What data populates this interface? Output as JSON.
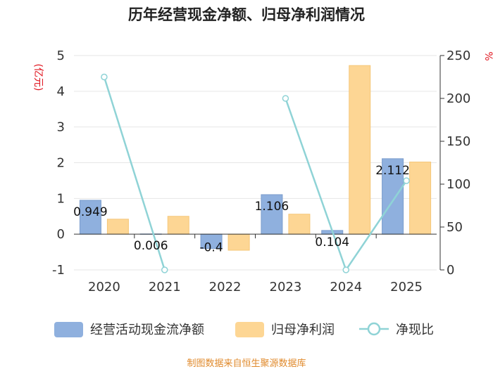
{
  "chart_data": {
    "type": "bar",
    "title": "历年经营现金净额、归母净利润情况",
    "categories": [
      "2020",
      "2021",
      "2022",
      "2023",
      "2024",
      "2025"
    ],
    "y_left_unit": "(亿元)",
    "y_right_unit": "%",
    "ylim_left": [
      -1,
      5
    ],
    "ylim_right": [
      0,
      250
    ],
    "yticks_left": [
      "5",
      "4",
      "3",
      "2",
      "1",
      "0",
      "-1"
    ],
    "yticks_right": [
      "250",
      "200",
      "150",
      "100",
      "50",
      "0"
    ],
    "series": [
      {
        "name": "经营活动现金流净额",
        "type": "bar",
        "axis": "left",
        "color": "#8fb0de",
        "values": [
          0.949,
          0.006,
          -0.4,
          1.106,
          0.104,
          2.112
        ],
        "labels": [
          "0.949",
          "0.006",
          "-0.4",
          "1.106",
          "0.104",
          "2.112"
        ]
      },
      {
        "name": "归母净利润",
        "type": "bar",
        "axis": "left",
        "color": "#fdd694",
        "values": [
          0.42,
          0.5,
          -0.45,
          0.56,
          4.72,
          2.02
        ]
      },
      {
        "name": "净现比",
        "type": "line",
        "axis": "right",
        "color": "#8fd3d6",
        "values": [
          225,
          0,
          null,
          200,
          0,
          104
        ]
      }
    ],
    "legend_position": "bottom",
    "grid": true
  },
  "footer": {
    "source": "制图数据来自恒生聚源数据库"
  }
}
